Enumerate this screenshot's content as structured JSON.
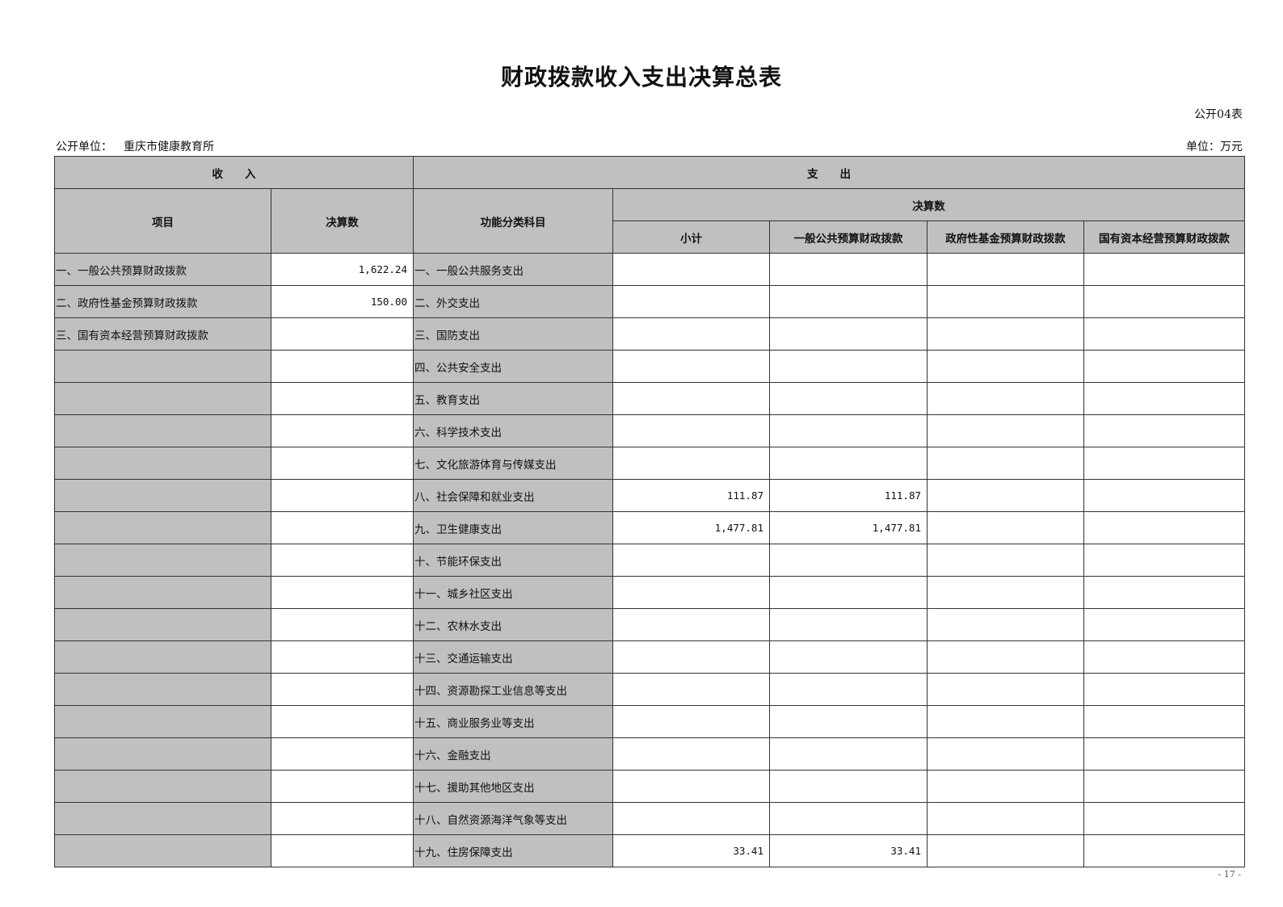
{
  "title": "财政拨款收入支出决算总表",
  "form_no": "公开04表",
  "unit_label": "公开单位：",
  "unit_name": "重庆市健康教育所",
  "currency_unit": "单位：万元",
  "headers": {
    "income": "收　　入",
    "expense": "支　　出",
    "item": "项目",
    "income_amount": "决算数",
    "function_category": "功能分类科目",
    "final_amount": "决算数",
    "subtotal": "小计",
    "general_budget": "一般公共预算财政拨款",
    "gov_fund": "政府性基金预算财政拨款",
    "state_capital": "国有资本经营预算财政拨款"
  },
  "rows": [
    {
      "income_item": "一、一般公共预算财政拨款",
      "income_amount": "1,622.24",
      "category": "一、一般公共服务支出",
      "subtotal": "",
      "general": "",
      "fund": "",
      "capital": ""
    },
    {
      "income_item": "二、政府性基金预算财政拨款",
      "income_amount": "150.00",
      "category": "二、外交支出",
      "subtotal": "",
      "general": "",
      "fund": "",
      "capital": ""
    },
    {
      "income_item": "三、国有资本经营预算财政拨款",
      "income_amount": "",
      "category": "三、国防支出",
      "subtotal": "",
      "general": "",
      "fund": "",
      "capital": ""
    },
    {
      "income_item": "",
      "income_amount": "",
      "category": "四、公共安全支出",
      "subtotal": "",
      "general": "",
      "fund": "",
      "capital": ""
    },
    {
      "income_item": "",
      "income_amount": "",
      "category": "五、教育支出",
      "subtotal": "",
      "general": "",
      "fund": "",
      "capital": ""
    },
    {
      "income_item": "",
      "income_amount": "",
      "category": "六、科学技术支出",
      "subtotal": "",
      "general": "",
      "fund": "",
      "capital": ""
    },
    {
      "income_item": "",
      "income_amount": "",
      "category": "七、文化旅游体育与传媒支出",
      "subtotal": "",
      "general": "",
      "fund": "",
      "capital": ""
    },
    {
      "income_item": "",
      "income_amount": "",
      "category": "八、社会保障和就业支出",
      "subtotal": "111.87",
      "general": "111.87",
      "fund": "",
      "capital": ""
    },
    {
      "income_item": "",
      "income_amount": "",
      "category": "九、卫生健康支出",
      "subtotal": "1,477.81",
      "general": "1,477.81",
      "fund": "",
      "capital": ""
    },
    {
      "income_item": "",
      "income_amount": "",
      "category": "十、节能环保支出",
      "subtotal": "",
      "general": "",
      "fund": "",
      "capital": ""
    },
    {
      "income_item": "",
      "income_amount": "",
      "category": "十一、城乡社区支出",
      "subtotal": "",
      "general": "",
      "fund": "",
      "capital": ""
    },
    {
      "income_item": "",
      "income_amount": "",
      "category": "十二、农林水支出",
      "subtotal": "",
      "general": "",
      "fund": "",
      "capital": ""
    },
    {
      "income_item": "",
      "income_amount": "",
      "category": "十三、交通运输支出",
      "subtotal": "",
      "general": "",
      "fund": "",
      "capital": ""
    },
    {
      "income_item": "",
      "income_amount": "",
      "category": "十四、资源勘探工业信息等支出",
      "subtotal": "",
      "general": "",
      "fund": "",
      "capital": ""
    },
    {
      "income_item": "",
      "income_amount": "",
      "category": "十五、商业服务业等支出",
      "subtotal": "",
      "general": "",
      "fund": "",
      "capital": ""
    },
    {
      "income_item": "",
      "income_amount": "",
      "category": "十六、金融支出",
      "subtotal": "",
      "general": "",
      "fund": "",
      "capital": ""
    },
    {
      "income_item": "",
      "income_amount": "",
      "category": "十七、援助其他地区支出",
      "subtotal": "",
      "general": "",
      "fund": "",
      "capital": ""
    },
    {
      "income_item": "",
      "income_amount": "",
      "category": "十八、自然资源海洋气象等支出",
      "subtotal": "",
      "general": "",
      "fund": "",
      "capital": ""
    },
    {
      "income_item": "",
      "income_amount": "",
      "category": "十九、住房保障支出",
      "subtotal": "33.41",
      "general": "33.41",
      "fund": "",
      "capital": ""
    }
  ],
  "page_number": "- 17 -"
}
